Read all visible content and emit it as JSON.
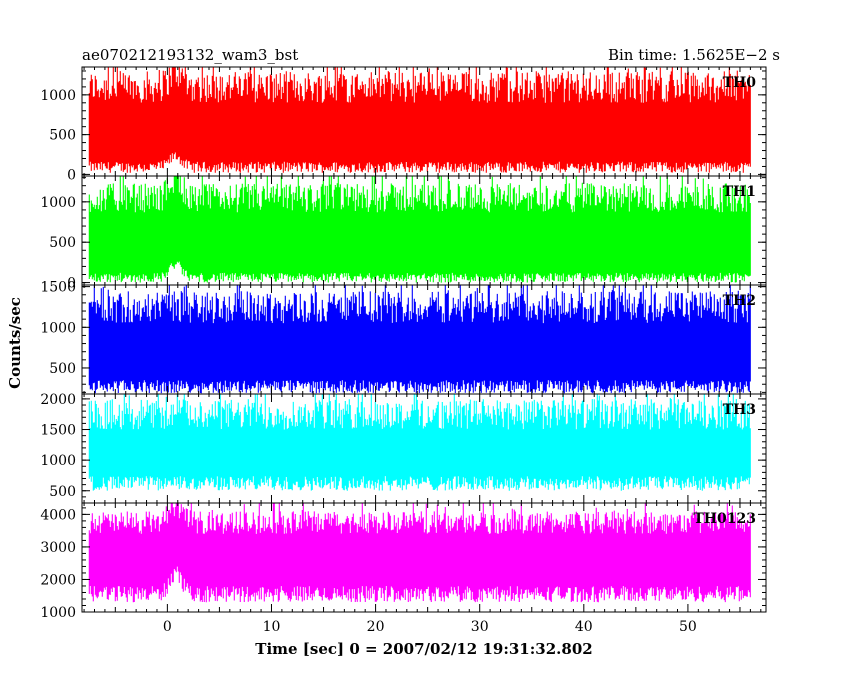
{
  "chart_data": {
    "type": "line",
    "title_left": "ae070212193132_wam3_bst",
    "title_right": "Bin time: 1.5625E−2 s",
    "xlabel": "Time [sec] 0 = 2007/02/12 19:31:32.802",
    "ylabel": "Counts/sec",
    "xlim": [
      -8.2,
      57.5
    ],
    "xticks": [
      0,
      10,
      20,
      30,
      40,
      50
    ],
    "x_range": [
      -7.5,
      56
    ],
    "grid": false,
    "panels": [
      {
        "name": "TH0",
        "color": "#ff0000",
        "ylim": [
          -20,
          1350
        ],
        "yticks": [
          0,
          500,
          1000
        ],
        "envelope": {
          "low_mean": 90,
          "high_mean": 1100,
          "low_spread": 70,
          "high_spread": 200
        },
        "features": [
          {
            "x": 0.8,
            "low_mean": 230,
            "high_mean": 1300
          }
        ]
      },
      {
        "name": "TH1",
        "color": "#00ff00",
        "ylim": [
          -30,
          1320
        ],
        "yticks": [
          0,
          500,
          1000
        ],
        "envelope": {
          "low_mean": 60,
          "high_mean": 1050,
          "low_spread": 60,
          "high_spread": 180
        },
        "features": [
          {
            "x": 0.8,
            "low_mean": 230,
            "high_mean": 1300
          }
        ]
      },
      {
        "name": "TH2",
        "color": "#0000ff",
        "ylim": [
          180,
          1520
        ],
        "yticks": [
          500,
          1000,
          1500
        ],
        "envelope": {
          "low_mean": 270,
          "high_mean": 1250,
          "low_spread": 80,
          "high_spread": 200
        },
        "features": []
      },
      {
        "name": "TH3",
        "color": "#00ffff",
        "ylim": [
          300,
          2080
        ],
        "yticks": [
          500,
          1000,
          1500,
          2000
        ],
        "envelope": {
          "low_mean": 620,
          "high_mean": 1750,
          "low_spread": 120,
          "high_spread": 250
        },
        "features": []
      },
      {
        "name": "TH0123",
        "color": "#ff00ff",
        "ylim": [
          1000,
          4350
        ],
        "yticks": [
          1000,
          2000,
          3000,
          4000
        ],
        "envelope": {
          "low_mean": 1550,
          "high_mean": 3750,
          "low_spread": 250,
          "high_spread": 350
        },
        "features": [
          {
            "x": 0.8,
            "low_mean": 2200,
            "high_mean": 4300
          }
        ]
      }
    ]
  }
}
